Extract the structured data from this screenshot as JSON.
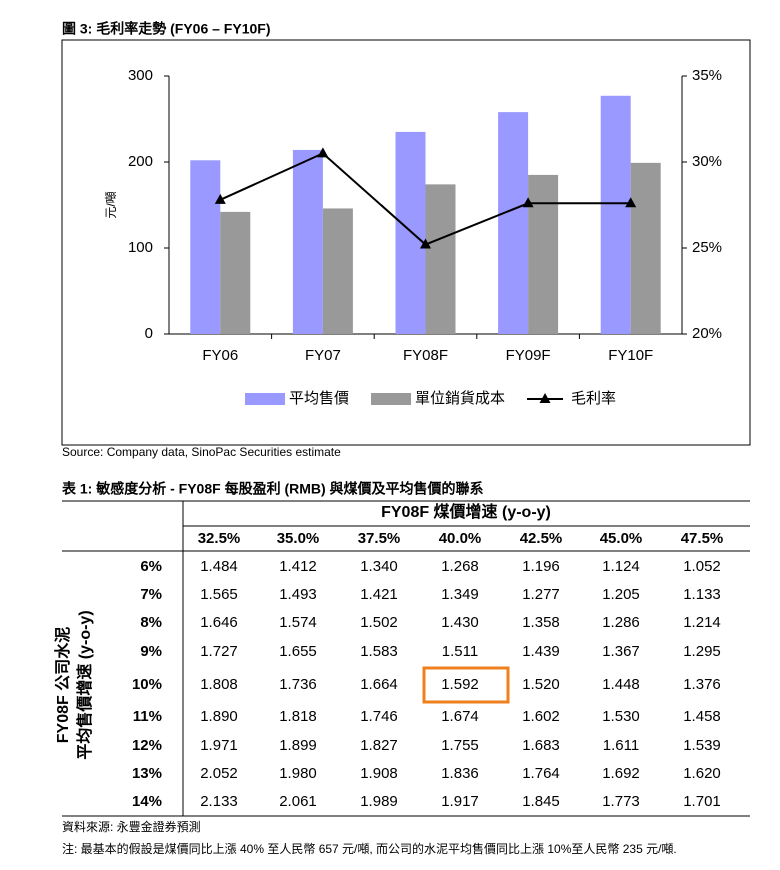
{
  "figure_caption": "圖 3: 毛利率走勢 (FY06 – FY10F)",
  "chart_data": {
    "type": "bar",
    "categories": [
      "FY06",
      "FY07",
      "FY08F",
      "FY09F",
      "FY10F"
    ],
    "y_label": "元/噸",
    "ylim": [
      0,
      300
    ],
    "yticks": [
      0,
      100,
      200,
      300
    ],
    "y2lim": [
      20,
      35
    ],
    "y2ticks": [
      {
        "value": 20,
        "label": "20%"
      },
      {
        "value": 25,
        "label": "25%"
      },
      {
        "value": 30,
        "label": "30%"
      },
      {
        "value": 35,
        "label": "35%"
      }
    ],
    "legend": "bottom",
    "series": [
      {
        "name": "平均售價",
        "type": "bar",
        "color": "#9999ff",
        "values": [
          202,
          214,
          235,
          258,
          277
        ]
      },
      {
        "name": "單位銷貨成本",
        "type": "bar",
        "color": "#999999",
        "values": [
          142,
          146,
          174,
          185,
          199
        ]
      },
      {
        "name": "毛利率",
        "type": "line",
        "axis": "y2",
        "color": "#000000",
        "values": [
          27.8,
          30.5,
          25.2,
          27.6,
          27.6
        ]
      }
    ]
  },
  "source": "Source: Company data, SinoPac Securities estimate",
  "table": {
    "caption": "表 1: 敏感度分析 - FY08F 每股盈利 (RMB) 與煤價及平均售價的聯系",
    "column_group_header": "FY08F 煤價增速 (y-o-y)",
    "columns": [
      "32.5%",
      "35.0%",
      "37.5%",
      "40.0%",
      "42.5%",
      "45.0%",
      "47.5%"
    ],
    "row_header": [
      "FY08F 公司水泥",
      "平均售價增速 (y-o-y)"
    ],
    "rows": [
      {
        "label": "6%",
        "values": [
          "1.484",
          "1.412",
          "1.340",
          "1.268",
          "1.196",
          "1.124",
          "1.052"
        ]
      },
      {
        "label": "7%",
        "values": [
          "1.565",
          "1.493",
          "1.421",
          "1.349",
          "1.277",
          "1.205",
          "1.133"
        ]
      },
      {
        "label": "8%",
        "values": [
          "1.646",
          "1.574",
          "1.502",
          "1.430",
          "1.358",
          "1.286",
          "1.214"
        ]
      },
      {
        "label": "9%",
        "values": [
          "1.727",
          "1.655",
          "1.583",
          "1.511",
          "1.439",
          "1.367",
          "1.295"
        ]
      },
      {
        "label": "10%",
        "values": [
          "1.808",
          "1.736",
          "1.664",
          "1.592",
          "1.520",
          "1.448",
          "1.376"
        ]
      },
      {
        "label": "11%",
        "values": [
          "1.890",
          "1.818",
          "1.746",
          "1.674",
          "1.602",
          "1.530",
          "1.458"
        ]
      },
      {
        "label": "12%",
        "values": [
          "1.971",
          "1.899",
          "1.827",
          "1.755",
          "1.683",
          "1.611",
          "1.539"
        ]
      },
      {
        "label": "13%",
        "values": [
          "2.052",
          "1.980",
          "1.908",
          "1.836",
          "1.764",
          "1.692",
          "1.620"
        ]
      },
      {
        "label": "14%",
        "values": [
          "2.133",
          "2.061",
          "1.989",
          "1.917",
          "1.845",
          "1.773",
          "1.701"
        ]
      }
    ]
  },
  "notes": [
    "資料來源: 永豐金證券預測",
    "注: 最基本的假設是煤價同比上漲 40% 至人民幣 657 元/噸, 而公司的水泥平均售價同比上漲 10%至人民幣 235 元/噸."
  ]
}
